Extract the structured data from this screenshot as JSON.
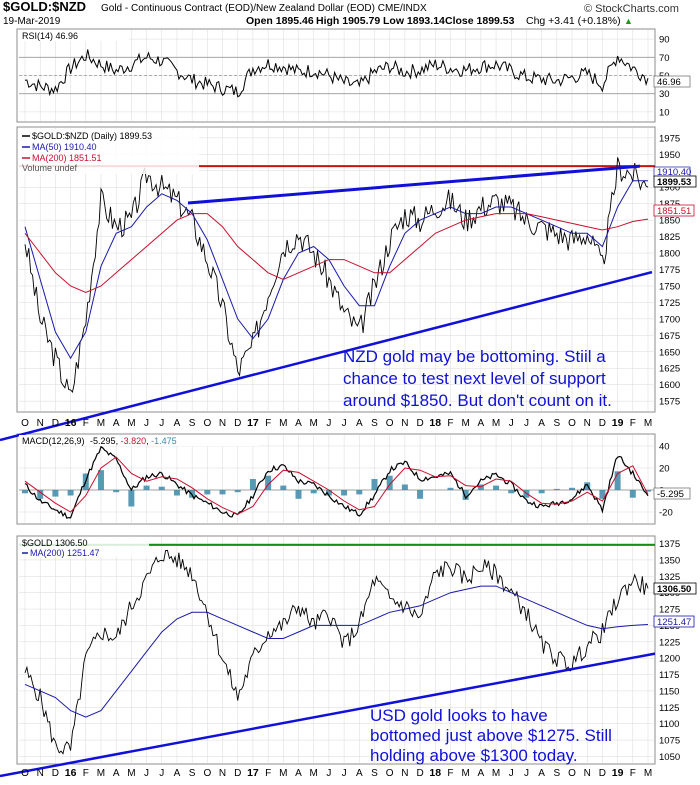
{
  "header": {
    "symbol": "$GOLD:$NZD",
    "description": "Gold - Continuous Contract (EOD)/New Zealand Dollar (EOD)  CME/INDX",
    "date": "19-Mar-2019",
    "open": "Open 1895.46",
    "high": "High 1905.79",
    "low": "Low 1893.14",
    "close": "Close 1899.53",
    "change": "Chg +3.41 (+0.18%)",
    "change_arrow": "▲",
    "brand": "© StockCharts.com"
  },
  "colors": {
    "price": "#000000",
    "ma50": "#1a1aa8",
    "ma200": "#c8102e",
    "trendline": "#1010d8",
    "resistance_nzd": "#d01010",
    "resistance_usd": "#129012",
    "macd_hist": "#3c8aa8",
    "grid": "#c8c8c8"
  },
  "x_axis": {
    "labels": [
      "O",
      "N",
      "D",
      "16",
      "F",
      "M",
      "A",
      "M",
      "J",
      "J",
      "A",
      "S",
      "O",
      "N",
      "D",
      "17",
      "F",
      "M",
      "A",
      "M",
      "J",
      "J",
      "A",
      "S",
      "O",
      "N",
      "D",
      "18",
      "F",
      "M",
      "A",
      "M",
      "J",
      "J",
      "A",
      "S",
      "O",
      "N",
      "D",
      "19",
      "F",
      "M"
    ],
    "bold_labels": [
      "16",
      "17",
      "18",
      "19"
    ]
  },
  "rsi_panel": {
    "legend": "RSI(14) 46.96",
    "levels": [
      90,
      70,
      50,
      30,
      10
    ],
    "value_label": "46.96"
  },
  "nzd_panel": {
    "legend_main": "$GOLD:$NZD (Daily) 1899.53",
    "legend_ma50": "MA(50) 1910.40",
    "legend_ma200": "MA(200) 1851.51",
    "legend_volume": "Volume undef",
    "y_ticks": [
      1975,
      1950,
      1925,
      1900,
      1875,
      1850,
      1825,
      1800,
      1775,
      1750,
      1725,
      1700,
      1675,
      1650,
      1625,
      1600,
      1575
    ],
    "last_close_label": "1899.53",
    "ma50_label": "1910.40",
    "ma200_label": "1851.51",
    "annotation": [
      "NZD gold may be bottoming. Stiil a",
      "chance to test next level of support",
      "around $1850. But don't count on it."
    ]
  },
  "macd_panel": {
    "legend_name": "MACD(12,26,9)",
    "legend_v1": "-5.295",
    "legend_v2": "-3.820",
    "legend_v3": "-1.475",
    "y_ticks": [
      40,
      20,
      0,
      -20
    ],
    "value_label": "-5.295"
  },
  "usd_panel": {
    "legend_main": "$GOLD 1306.50",
    "legend_ma200": "MA(200) 1251.47",
    "y_ticks": [
      1375,
      1350,
      1325,
      1300,
      1275,
      1250,
      1225,
      1200,
      1175,
      1150,
      1125,
      1100,
      1075,
      1050
    ],
    "last_close_label": "1306.50",
    "ma200_label": "1251.47",
    "annotation": [
      "USD gold looks to have",
      "bottomed just above $1275. Still",
      "holding above $1300 today."
    ]
  },
  "chart_data": [
    {
      "type": "line",
      "title": "RSI(14) 46.96",
      "ylim": [
        0,
        100
      ],
      "guide_levels": [
        70,
        50,
        30
      ],
      "x": [
        "O",
        "N",
        "D",
        "16",
        "F",
        "M",
        "A",
        "M",
        "J",
        "J",
        "A",
        "S",
        "O",
        "N",
        "D",
        "17",
        "F",
        "M",
        "A",
        "M",
        "J",
        "J",
        "A",
        "S",
        "O",
        "N",
        "D",
        "18",
        "F",
        "M",
        "A",
        "M",
        "J",
        "J",
        "A",
        "S",
        "O",
        "N",
        "D",
        "19",
        "F",
        "M"
      ],
      "series": [
        {
          "name": "RSI(14)",
          "values": [
            45,
            38,
            35,
            58,
            72,
            62,
            55,
            62,
            70,
            66,
            55,
            45,
            40,
            36,
            32,
            58,
            63,
            60,
            54,
            56,
            50,
            42,
            38,
            54,
            60,
            54,
            56,
            62,
            58,
            56,
            60,
            62,
            55,
            48,
            46,
            44,
            48,
            52,
            40,
            72,
            58,
            47
          ]
        }
      ]
    },
    {
      "type": "line",
      "title": "$GOLD:$NZD (Daily) 1899.53",
      "ylim": [
        1560,
        1990
      ],
      "x": [
        "O",
        "N",
        "D",
        "16",
        "F",
        "M",
        "A",
        "M",
        "J",
        "J",
        "A",
        "S",
        "O",
        "N",
        "D",
        "17",
        "F",
        "M",
        "A",
        "M",
        "J",
        "J",
        "A",
        "S",
        "O",
        "N",
        "D",
        "18",
        "F",
        "M",
        "A",
        "M",
        "J",
        "J",
        "A",
        "S",
        "O",
        "N",
        "D",
        "19",
        "F",
        "M"
      ],
      "series": [
        {
          "name": "$GOLD:$NZD",
          "values": [
            1820,
            1700,
            1640,
            1580,
            1700,
            1880,
            1840,
            1850,
            1920,
            1900,
            1880,
            1850,
            1790,
            1720,
            1620,
            1660,
            1740,
            1810,
            1830,
            1800,
            1760,
            1710,
            1680,
            1750,
            1820,
            1860,
            1850,
            1870,
            1880,
            1850,
            1870,
            1880,
            1870,
            1850,
            1840,
            1830,
            1820,
            1830,
            1780,
            1930,
            1920,
            1900
          ]
        },
        {
          "name": "MA(50)",
          "values": [
            1840,
            1760,
            1680,
            1640,
            1680,
            1780,
            1830,
            1840,
            1870,
            1890,
            1880,
            1860,
            1820,
            1760,
            1700,
            1670,
            1700,
            1760,
            1800,
            1810,
            1790,
            1750,
            1720,
            1720,
            1780,
            1830,
            1850,
            1860,
            1870,
            1860,
            1860,
            1870,
            1870,
            1860,
            1850,
            1840,
            1830,
            1830,
            1810,
            1870,
            1910,
            1910
          ]
        },
        {
          "name": "MA(200)",
          "values": [
            1830,
            1800,
            1770,
            1750,
            1740,
            1750,
            1770,
            1790,
            1810,
            1830,
            1850,
            1860,
            1860,
            1840,
            1810,
            1790,
            1770,
            1760,
            1770,
            1780,
            1790,
            1790,
            1780,
            1770,
            1770,
            1790,
            1810,
            1830,
            1840,
            1850,
            1855,
            1860,
            1860,
            1860,
            1855,
            1850,
            1845,
            1840,
            1835,
            1840,
            1848,
            1851.51
          ]
        }
      ]
    },
    {
      "type": "line",
      "title": "MACD(12,26,9) -5.295, -3.820, -1.475",
      "ylim": [
        -30,
        50
      ],
      "x": [
        "O",
        "N",
        "D",
        "16",
        "F",
        "M",
        "A",
        "M",
        "J",
        "J",
        "A",
        "S",
        "O",
        "N",
        "D",
        "17",
        "F",
        "M",
        "A",
        "M",
        "J",
        "J",
        "A",
        "S",
        "O",
        "N",
        "D",
        "18",
        "F",
        "M",
        "A",
        "M",
        "J",
        "J",
        "A",
        "S",
        "O",
        "N",
        "D",
        "19",
        "F",
        "M"
      ],
      "series": [
        {
          "name": "MACD",
          "values": [
            5,
            -10,
            -18,
            -25,
            10,
            38,
            28,
            0,
            12,
            15,
            5,
            -5,
            -12,
            -20,
            -24,
            -5,
            18,
            22,
            8,
            5,
            -5,
            -15,
            -22,
            -5,
            18,
            25,
            10,
            12,
            15,
            -5,
            8,
            14,
            5,
            -10,
            -15,
            -12,
            -8,
            5,
            -18,
            32,
            15,
            -5.295
          ]
        },
        {
          "name": "Signal",
          "values": [
            8,
            -2,
            -12,
            -20,
            -5,
            20,
            30,
            15,
            8,
            12,
            10,
            2,
            -8,
            -16,
            -22,
            -15,
            5,
            18,
            16,
            8,
            0,
            -10,
            -18,
            -15,
            5,
            20,
            18,
            12,
            13,
            4,
            3,
            10,
            8,
            -3,
            -12,
            -13,
            -10,
            -2,
            -10,
            15,
            22,
            -3.82
          ]
        },
        {
          "name": "Histogram",
          "values": [
            -3,
            -8,
            -6,
            -5,
            15,
            18,
            -2,
            -15,
            4,
            3,
            -5,
            -7,
            -4,
            -4,
            -2,
            10,
            13,
            4,
            -8,
            -3,
            -5,
            -5,
            -4,
            10,
            13,
            5,
            -8,
            0,
            2,
            -9,
            5,
            4,
            -3,
            -7,
            -3,
            1,
            2,
            7,
            -8,
            17,
            -7,
            -1.475
          ]
        }
      ]
    },
    {
      "type": "line",
      "title": "$GOLD 1306.50",
      "ylim": [
        1040,
        1385
      ],
      "x": [
        "O",
        "N",
        "D",
        "16",
        "F",
        "M",
        "A",
        "M",
        "J",
        "J",
        "A",
        "S",
        "O",
        "N",
        "D",
        "17",
        "F",
        "M",
        "A",
        "M",
        "J",
        "J",
        "A",
        "S",
        "O",
        "N",
        "D",
        "18",
        "F",
        "M",
        "A",
        "M",
        "J",
        "J",
        "A",
        "S",
        "O",
        "N",
        "D",
        "19",
        "F",
        "M"
      ],
      "series": [
        {
          "name": "$GOLD",
          "values": [
            1180,
            1140,
            1065,
            1060,
            1200,
            1240,
            1230,
            1280,
            1320,
            1360,
            1350,
            1330,
            1270,
            1200,
            1140,
            1200,
            1240,
            1250,
            1280,
            1250,
            1270,
            1220,
            1250,
            1320,
            1290,
            1280,
            1260,
            1330,
            1340,
            1320,
            1340,
            1330,
            1300,
            1270,
            1220,
            1200,
            1190,
            1220,
            1240,
            1290,
            1320,
            1306.5
          ]
        },
        {
          "name": "MA(200)",
          "values": [
            1160,
            1150,
            1140,
            1120,
            1110,
            1120,
            1150,
            1180,
            1210,
            1240,
            1260,
            1270,
            1270,
            1260,
            1250,
            1240,
            1230,
            1230,
            1240,
            1250,
            1250,
            1250,
            1250,
            1260,
            1270,
            1275,
            1280,
            1290,
            1300,
            1305,
            1310,
            1310,
            1300,
            1290,
            1280,
            1270,
            1260,
            1250,
            1245,
            1248,
            1250,
            1251.47
          ]
        }
      ]
    }
  ]
}
